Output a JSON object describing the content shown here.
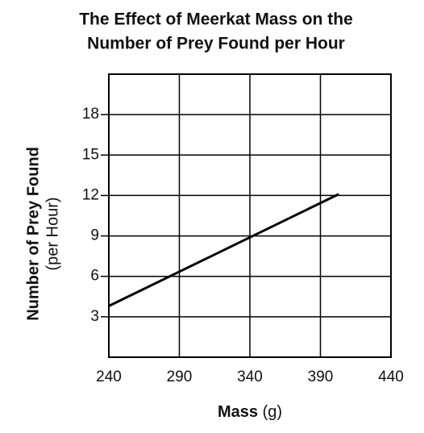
{
  "chart_data": {
    "type": "line",
    "title": [
      "The Effect of Meerkat Mass on the",
      "Number of Prey Found per Hour"
    ],
    "x_label": {
      "text": "Mass",
      "unit": "(g)"
    },
    "y_label": {
      "text": "Number of Prey Found",
      "unit": "(per Hour)"
    },
    "x": [
      240,
      403
    ],
    "series": [
      {
        "name": null,
        "color": "#000000",
        "values": [
          3.8,
          12.1
        ]
      }
    ],
    "xlim": [
      240,
      440
    ],
    "xticks": [
      240,
      290,
      340,
      390,
      440
    ],
    "ylim": [
      0,
      21
    ],
    "yticks": [
      3,
      6,
      9,
      12,
      15,
      18
    ],
    "grid": true
  }
}
